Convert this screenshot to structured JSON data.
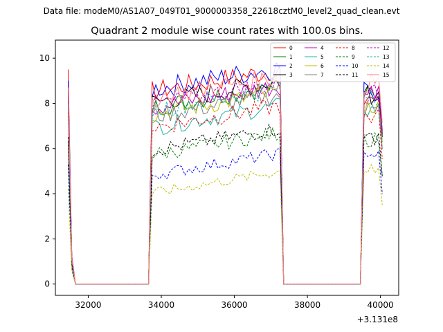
{
  "header": {
    "data_file": "Data file: modeM0/AS1A07_049T01_9000003358_22618cztM0_level2_quad_clean.evt"
  },
  "chart_data": {
    "type": "line",
    "title": "Quadrant 2 module wise count rates with 100.0s bins.",
    "xlabel": "",
    "ylabel": "",
    "x_offset_label": "+3.131e8",
    "xlim": [
      31100,
      40500
    ],
    "ylim": [
      -0.5,
      10.8
    ],
    "x_ticks": [
      32000,
      34000,
      36000,
      38000,
      40000
    ],
    "x_tick_labels": [
      "32000",
      "34000",
      "36000",
      "38000",
      "40000"
    ],
    "y_ticks": [
      0,
      2,
      4,
      6,
      8,
      10
    ],
    "y_tick_labels": [
      "0",
      "2",
      "4",
      "6",
      "8",
      "10"
    ],
    "grid": false,
    "legend_position": "top-right",
    "segments": [
      {
        "x_start": 31450,
        "x_end": 31650,
        "rise": "falling",
        "zero_after": 31650
      },
      {
        "x_start": 33650,
        "x_end": 37350,
        "zero_before": 33650
      },
      {
        "x_start": 37350,
        "x_end": 37500,
        "rise": "falling"
      },
      {
        "x_start": 39450,
        "x_end": 40050,
        "zero_before": 39450
      }
    ],
    "zero_bins": {
      "first_gap": [
        31650,
        33650
      ],
      "second_gap": [
        37500,
        39450
      ]
    },
    "series": [
      {
        "name": "0",
        "color": "#ff0000",
        "style": "solid",
        "level_first": 9.5,
        "level_orbit": 9.0,
        "level_last": 8.0
      },
      {
        "name": "1",
        "color": "#008000",
        "style": "solid",
        "level_first": 8.6,
        "level_orbit": 8.3,
        "level_last": 7.9
      },
      {
        "name": "2",
        "color": "#0000ff",
        "style": "solid",
        "level_first": 9.0,
        "level_orbit": 9.1,
        "level_last": 8.1
      },
      {
        "name": "3",
        "color": "#000000",
        "style": "solid",
        "level_first": 8.3,
        "level_orbit": 8.5,
        "level_last": 8.0
      },
      {
        "name": "4",
        "color": "#bf00bf",
        "style": "solid",
        "level_first": 8.6,
        "level_orbit": 8.3,
        "level_last": 8.1
      },
      {
        "name": "5",
        "color": "#20b2aa",
        "style": "solid",
        "level_first": 7.5,
        "level_orbit": 7.4,
        "level_last": 7.2
      },
      {
        "name": "6",
        "color": "#bfbf00",
        "style": "solid",
        "level_first": 8.0,
        "level_orbit": 8.0,
        "level_last": 7.5
      },
      {
        "name": "7",
        "color": "#808080",
        "style": "solid",
        "level_first": 7.8,
        "level_orbit": 7.9,
        "level_last": 7.3
      },
      {
        "name": "8",
        "color": "#ff0000",
        "style": "dashed",
        "level_first": 7.6,
        "level_orbit": 7.4,
        "level_last": 7.0
      },
      {
        "name": "9",
        "color": "#008000",
        "style": "dashed",
        "level_first": 6.3,
        "level_orbit": 6.2,
        "level_last": 6.0
      },
      {
        "name": "10",
        "color": "#0000ff",
        "style": "dashed",
        "level_first": 5.3,
        "level_orbit": 5.3,
        "level_last": 5.3
      },
      {
        "name": "11",
        "color": "#000000",
        "style": "dashed",
        "level_first": 6.5,
        "level_orbit": 6.4,
        "level_last": 6.1
      },
      {
        "name": "12",
        "color": "#bf00bf",
        "style": "dashed",
        "level_first": 8.5,
        "level_orbit": 8.4,
        "level_last": 8.0
      },
      {
        "name": "13",
        "color": "#20b2aa",
        "style": "dashed",
        "level_first": 8.0,
        "level_orbit": 8.2,
        "level_last": 7.8
      },
      {
        "name": "14",
        "color": "#bfbf00",
        "style": "dashed",
        "level_first": 4.2,
        "level_orbit": 4.5,
        "level_last": 4.7
      },
      {
        "name": "15",
        "color": "#ff8080",
        "style": "solid",
        "level_first": 8.7,
        "level_orbit": 8.7,
        "level_last": 8.5
      }
    ]
  }
}
